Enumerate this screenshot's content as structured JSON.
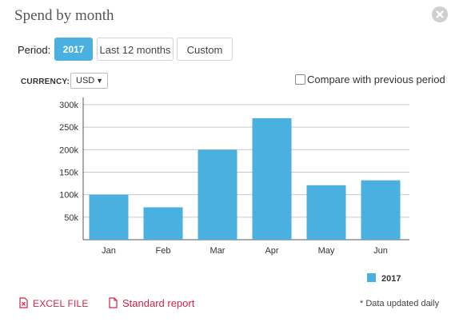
{
  "dialog": {
    "title": "Spend by month",
    "close_icon": "close-icon"
  },
  "period": {
    "label": "Period:",
    "options": [
      "2017",
      "Last 12 months",
      "Custom"
    ],
    "selected": "2017"
  },
  "currency": {
    "label": "CURRENCY:",
    "value": "USD",
    "caret": "▼"
  },
  "compare": {
    "label": "Compare with previous period",
    "checked": false
  },
  "chart_data": {
    "type": "bar",
    "categories": [
      "Jan",
      "Feb",
      "Mar",
      "Apr",
      "May",
      "Jun"
    ],
    "series": [
      {
        "name": "2017",
        "values": [
          100000,
          72000,
          200000,
          270000,
          121000,
          132000
        ],
        "color": "#4ab0e0"
      }
    ],
    "ylim": [
      0,
      300000
    ],
    "yticks": [
      50000,
      100000,
      150000,
      200000,
      250000,
      300000
    ],
    "ytick_labels": [
      "50k",
      "100k",
      "150k",
      "200k",
      "250k",
      "300k"
    ],
    "grid": true,
    "legend": "bottom-right"
  },
  "legend": {
    "label": "2017",
    "color": "#4ab0e0"
  },
  "exports": {
    "excel_label": "EXCEL FILE",
    "standard_label": "Standard report"
  },
  "note": "* Data updated daily"
}
